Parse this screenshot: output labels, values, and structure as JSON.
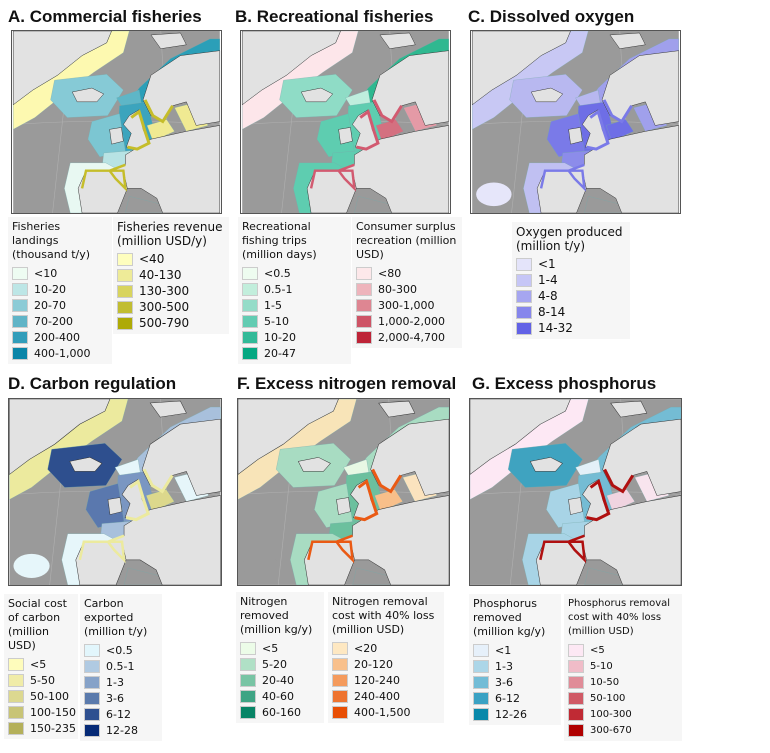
{
  "panels": [
    {
      "title": "A. Commercial fisheries",
      "fills": {
        "greenland": "#fdf9b0",
        "iceland": "#86cad6",
        "norway": "#2b9fb8",
        "north": "#5eb6c7",
        "uk": "#3ca4bd",
        "ireland": "#7cc6d2",
        "biscay": "#b8e3e4",
        "iberia": "#e8f8f2",
        "nsea": "#f0ea92",
        "baltic": "#f0ea92",
        "med": "#9a9a9a",
        "azores": "#9a9a9a",
        "coast": "#c5bd2a"
      }
    },
    {
      "title": "B. Recreational fisheries",
      "fills": {
        "greenland": "#fde6ea",
        "iceland": "#8fdcc6",
        "norway": "#2fb890",
        "north": "#bfeedd",
        "uk": "#5ecdb0",
        "ireland": "#5ecdb0",
        "biscay": "#5ecdb0",
        "iberia": "#5ecdb0",
        "nsea": "#d47080",
        "baltic": "#e49aa6",
        "med": "#9a9a9a",
        "azores": "#9a9a9a",
        "coast": "#d25a70"
      }
    },
    {
      "title": "C. Dissolved oxygen",
      "fills": {
        "greenland": "#c8c8f4",
        "iceland": "#b8b8f0",
        "norway": "#a0a0ec",
        "north": "#b8b8f0",
        "uk": "#6e6ee6",
        "ireland": "#7a7ae8",
        "biscay": "#8c8cea",
        "iberia": "#c0c0f2",
        "nsea": "#6e6ee6",
        "baltic": "#a0a0ec",
        "med": "#9a9a9a",
        "azores": "#e6e6fa",
        "coast": "#7a7ae8"
      }
    },
    {
      "title": "D. Carbon regulation",
      "fills": {
        "greenland": "#ecea9e",
        "iceland": "#2e4f8e",
        "norway": "#a8c0dc",
        "north": "#e6f6fa",
        "uk": "#7a96c2",
        "ireland": "#5a78ae",
        "biscay": "#a8c0dc",
        "iberia": "#e6f6fa",
        "nsea": "#dcd88c",
        "baltic": "#e6f6fa",
        "med": "#9a9a9a",
        "azores": "#e6f6fa",
        "coast": "#ecea9e"
      }
    },
    {
      "title": "F. Excess nitrogen removal",
      "fills": {
        "greenland": "#f8e4b8",
        "iceland": "#a8dcc2",
        "norway": "#a8dcc2",
        "north": "#e8f8e4",
        "uk": "#6cc09e",
        "ireland": "#a8dcc2",
        "biscay": "#6cc09e",
        "iberia": "#a8dcc2",
        "nsea": "#f8bf8a",
        "baltic": "#fbe3be",
        "med": "#9a9a9a",
        "azores": "#9a9a9a",
        "coast": "#ea5a14"
      }
    },
    {
      "title": "G. Excess phosphorus",
      "fills": {
        "greenland": "#fde8f4",
        "iceland": "#3fa3c0",
        "norway": "#74bcd4",
        "north": "#e4f0f8",
        "uk": "#74bcd4",
        "ireland": "#a8d4e6",
        "biscay": "#a8d4e6",
        "iberia": "#a8d4e6",
        "nsea": "#f0d4e0",
        "baltic": "#f8e4ee",
        "med": "#9a9a9a",
        "azores": "#9a9a9a",
        "coast": "#b01010"
      }
    }
  ],
  "legends": [
    {
      "title": "Fisheries landings (thousand t/y)",
      "items": [
        [
          "<10",
          "#eefcf2"
        ],
        [
          "10-20",
          "#bde6e6"
        ],
        [
          "20-70",
          "#8ccbd6"
        ],
        [
          "70-200",
          "#5fb4c7"
        ],
        [
          "200-400",
          "#319dba"
        ],
        [
          "400-1,000",
          "#0a85a8"
        ]
      ]
    },
    {
      "title": "Fisheries revenue (million USD/y)",
      "items": [
        [
          "<40",
          "#fefebe"
        ],
        [
          "40-130",
          "#eeeb98"
        ],
        [
          "130-300",
          "#d8d45e"
        ],
        [
          "300-500",
          "#c1bd32"
        ],
        [
          "500-790",
          "#aeaa06"
        ]
      ]
    },
    {
      "title": "Recreational fishing trips (million days)",
      "items": [
        [
          "<0.5",
          "#eefcf0"
        ],
        [
          "0.5-1",
          "#c2eedc"
        ],
        [
          "1-5",
          "#94dcc8"
        ],
        [
          "5-10",
          "#62ccb2"
        ],
        [
          "10-20",
          "#32ba98"
        ],
        [
          "20-47",
          "#06a882"
        ]
      ]
    },
    {
      "title": "Consumer surplus recreation (million USD)",
      "items": [
        [
          "<80",
          "#fde8ea"
        ],
        [
          "80-300",
          "#eeb4bc"
        ],
        [
          "300-1,000",
          "#de8692"
        ],
        [
          "1,000-2,000",
          "#ce5466"
        ],
        [
          "2,000-4,700",
          "#be2438"
        ]
      ]
    },
    {
      "title": "Oxygen produced (million t/y)",
      "items": [
        [
          "<1",
          "#e4e4fa"
        ],
        [
          "1-4",
          "#c6c6f6"
        ],
        [
          "4-8",
          "#a6a6f0"
        ],
        [
          "8-14",
          "#8686ec"
        ],
        [
          "14-32",
          "#6262e6"
        ]
      ]
    },
    {
      "title": "Social cost of carbon (million USD)",
      "items": [
        [
          "<5",
          "#fefcbc"
        ],
        [
          "5-50",
          "#f0eca8"
        ],
        [
          "50-100",
          "#dcd890"
        ],
        [
          "100-150",
          "#c8c476"
        ],
        [
          "150-235",
          "#b4b05a"
        ]
      ]
    },
    {
      "title": "Carbon exported (million t/y)",
      "items": [
        [
          "<0.5",
          "#e2f6fc"
        ],
        [
          "0.5-1",
          "#b0cae2"
        ],
        [
          "1-3",
          "#86a2c8"
        ],
        [
          "3-6",
          "#5a7aac"
        ],
        [
          "6-12",
          "#2e5090"
        ],
        [
          "12-28",
          "#062a76"
        ]
      ]
    },
    {
      "title": "Nitrogen removed (million kg/y)",
      "items": [
        [
          "<5",
          "#ecfce8"
        ],
        [
          "5-20",
          "#b0e0c6"
        ],
        [
          "20-40",
          "#78c4a4"
        ],
        [
          "40-60",
          "#3ea484"
        ],
        [
          "60-160",
          "#088466"
        ]
      ]
    },
    {
      "title": "Nitrogen removal cost with 40% loss (million USD)",
      "items": [
        [
          "<20",
          "#fee8c2"
        ],
        [
          "20-120",
          "#f8c08c"
        ],
        [
          "120-240",
          "#f49a5c"
        ],
        [
          "240-400",
          "#ee7430"
        ],
        [
          "400-1,500",
          "#e84e04"
        ]
      ]
    },
    {
      "title": "Phosphorus removed (million kg/y)",
      "items": [
        [
          "<1",
          "#e6f0fa"
        ],
        [
          "1-3",
          "#acd6e8"
        ],
        [
          "3-6",
          "#72bcd6"
        ],
        [
          "6-12",
          "#3aa2c4"
        ],
        [
          "12-26",
          "#0888aa"
        ]
      ]
    },
    {
      "title": "Phosphorus removal cost with 40% loss (million USD)",
      "items": [
        [
          "<5",
          "#fde8f4"
        ],
        [
          "5-10",
          "#f0bcc8"
        ],
        [
          "10-50",
          "#e08c98"
        ],
        [
          "50-100",
          "#d05a66"
        ],
        [
          "100-300",
          "#c02a34"
        ],
        [
          "300-670",
          "#b00000"
        ]
      ]
    }
  ]
}
